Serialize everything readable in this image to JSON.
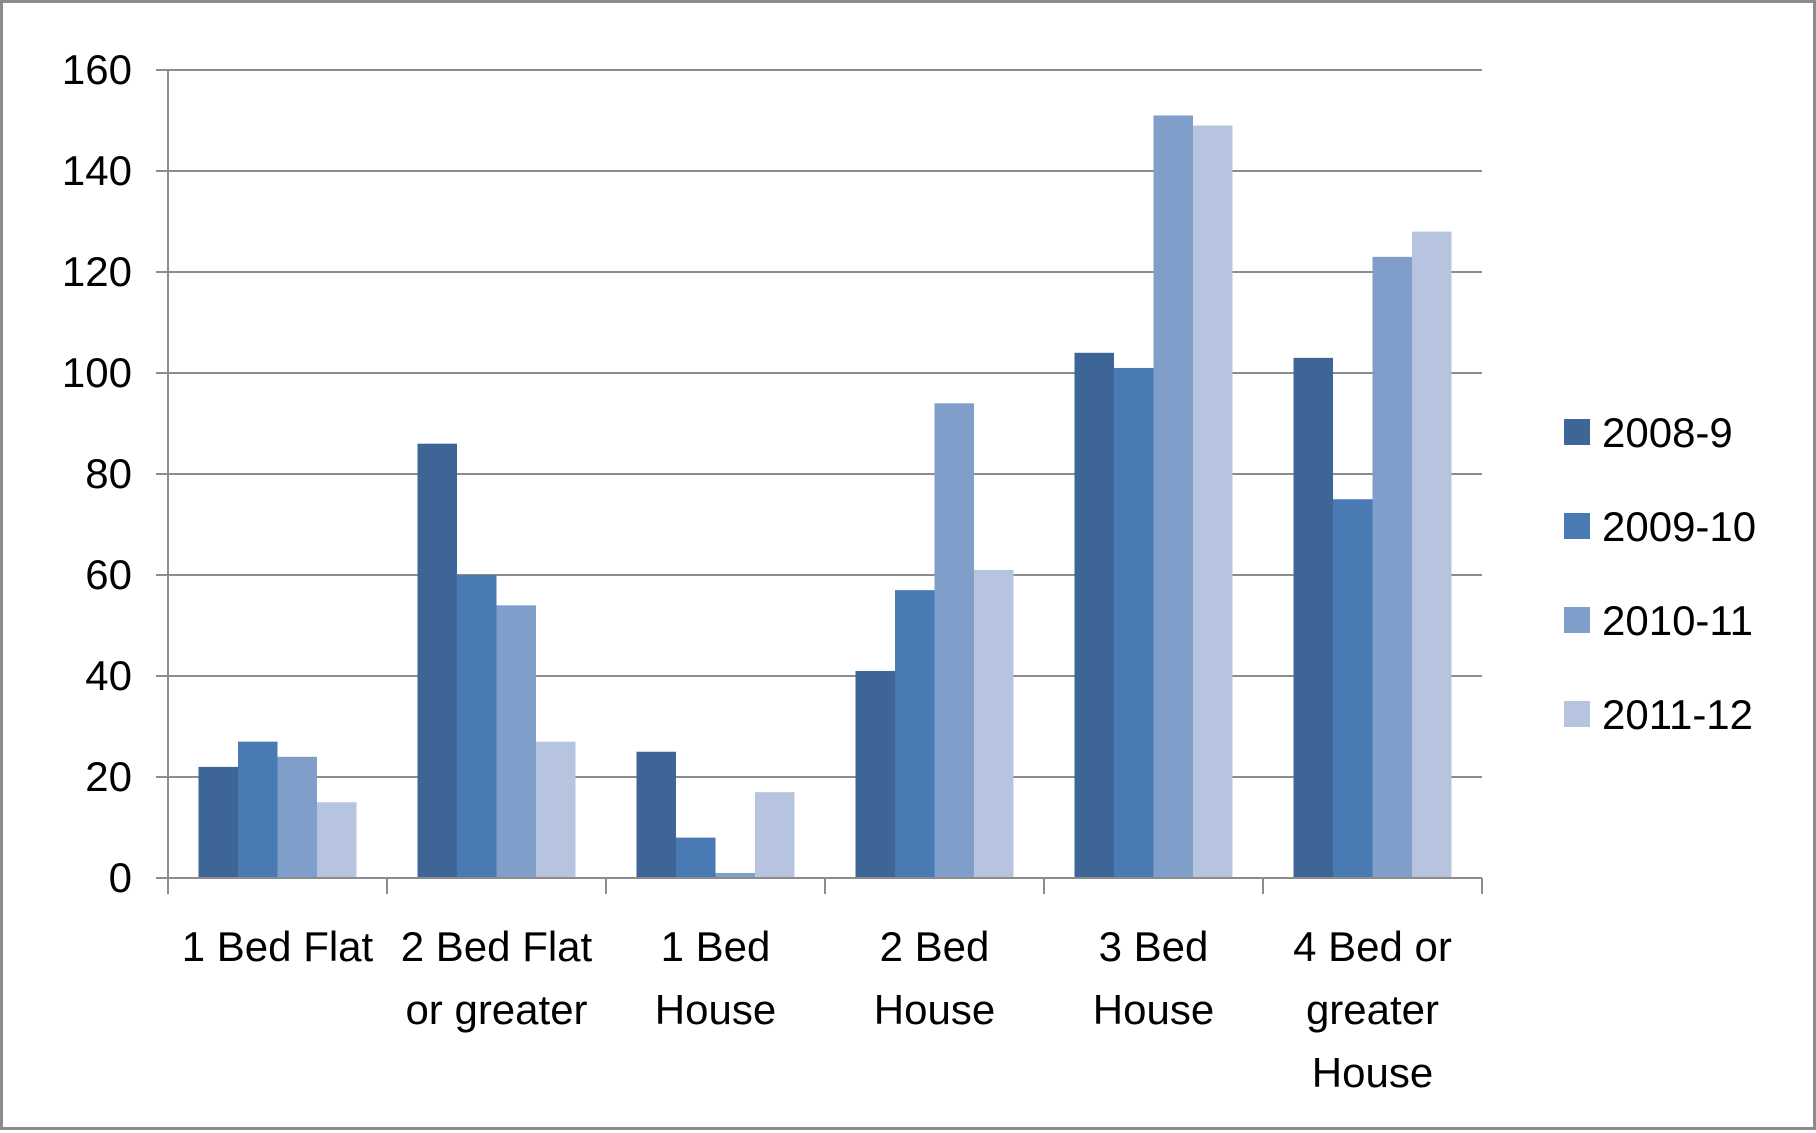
{
  "chart_data": {
    "type": "bar",
    "title": "",
    "xlabel": "",
    "ylabel": "",
    "categories": [
      [
        "1 Bed Flat"
      ],
      [
        "2 Bed Flat",
        "or greater"
      ],
      [
        "1 Bed",
        "House"
      ],
      [
        "2 Bed",
        "House"
      ],
      [
        "3 Bed",
        "House"
      ],
      [
        "4 Bed or",
        "greater",
        "House"
      ]
    ],
    "series": [
      {
        "name": "2008-9",
        "color": "#3d6696",
        "values": [
          22,
          86,
          25,
          41,
          104,
          103
        ]
      },
      {
        "name": "2009-10",
        "color": "#4a7ab4",
        "values": [
          27,
          60,
          8,
          57,
          101,
          75
        ]
      },
      {
        "name": "2010-11",
        "color": "#7f9fca",
        "values": [
          24,
          54,
          1,
          94,
          151,
          123
        ]
      },
      {
        "name": "2011-12",
        "color": "#b7c4e0",
        "values": [
          15,
          27,
          17,
          61,
          149,
          128
        ]
      }
    ],
    "ylim": [
      0,
      160
    ],
    "yticks": [
      0,
      20,
      40,
      60,
      80,
      100,
      120,
      140,
      160
    ],
    "grid": true,
    "legend_position": "right"
  }
}
